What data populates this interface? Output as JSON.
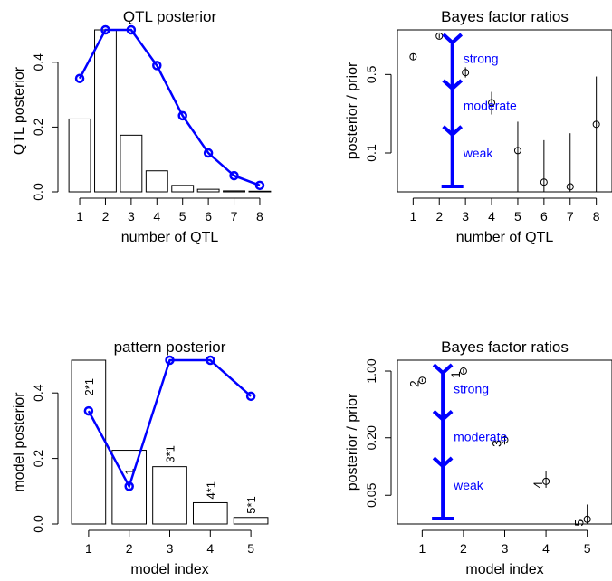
{
  "colors": {
    "ink": "#000000",
    "accent": "#0000ff",
    "bg": "#ffffff"
  },
  "chart_data": [
    {
      "type": "bar",
      "title": "QTL posterior",
      "xlabel": "number of QTL",
      "ylabel": "QTL posterior",
      "categories": [
        "1",
        "2",
        "3",
        "4",
        "5",
        "6",
        "7",
        "8"
      ],
      "ylim": [
        0,
        0.5
      ],
      "yticks": [
        "0.0",
        "0.2",
        "0.4"
      ],
      "bars": [
        0.225,
        0.51,
        0.175,
        0.065,
        0.02,
        0.008,
        0.003,
        0.002
      ],
      "line": {
        "values": [
          0.35,
          0.52,
          0.52,
          0.39,
          0.235,
          0.12,
          0.05,
          0.02
        ]
      }
    },
    {
      "type": "scatter",
      "title": "Bayes factor ratios",
      "xlabel": "number of QTL",
      "ylabel": "posterior / prior",
      "categories": [
        "1",
        "2",
        "3",
        "4",
        "5",
        "6",
        "7",
        "8"
      ],
      "log_y": true,
      "ylim": [
        0.045,
        1.25
      ],
      "yticks": [
        "0.1",
        "0.5"
      ],
      "points": [
        0.72,
        1.1,
        0.52,
        0.28,
        0.105,
        0.055,
        0.05,
        0.18
      ],
      "intervals": [
        [
          0.68,
          0.77
        ],
        [
          1.05,
          1.15
        ],
        [
          0.47,
          0.58
        ],
        [
          0.22,
          0.35
        ],
        [
          0.045,
          0.19
        ],
        [
          0.045,
          0.13
        ],
        [
          0.045,
          0.15
        ],
        [
          0.045,
          0.48
        ]
      ],
      "arrow": {
        "x": 2.5,
        "labels": [
          "strong",
          "moderate",
          "weak"
        ]
      }
    },
    {
      "type": "bar",
      "title": "pattern posterior",
      "xlabel": "model index",
      "ylabel": "model posterior",
      "categories": [
        "1",
        "2",
        "3",
        "4",
        "5"
      ],
      "ylim": [
        0,
        0.5
      ],
      "yticks": [
        "0.0",
        "0.2",
        "0.4"
      ],
      "bars": [
        0.51,
        0.225,
        0.175,
        0.065,
        0.02
      ],
      "bar_labels": [
        "2*1",
        "1",
        "3*1",
        "4*1",
        "5*1"
      ],
      "line": {
        "values": [
          0.345,
          0.115,
          0.52,
          0.52,
          0.39
        ]
      }
    },
    {
      "type": "scatter",
      "title": "Bayes factor ratios",
      "xlabel": "model index",
      "ylabel": "posterior / prior",
      "categories": [
        "1",
        "2",
        "3",
        "4",
        "5"
      ],
      "log_y": true,
      "ylim": [
        0.025,
        1.3
      ],
      "yticks": [
        "0.05",
        "0.20",
        "1.00"
      ],
      "points": [
        0.8,
        1.0,
        0.19,
        0.07,
        0.028
      ],
      "point_x": [
        1,
        2,
        3,
        4,
        5
      ],
      "point_labels": [
        "2",
        "1",
        "3",
        "4",
        "5"
      ],
      "intervals": [
        [
          0.77,
          0.83
        ],
        [
          0.95,
          1.05
        ],
        [
          0.17,
          0.21
        ],
        [
          0.06,
          0.09
        ],
        [
          0.025,
          0.04
        ]
      ],
      "arrow": {
        "x": 1.5,
        "labels": [
          "strong",
          "moderate",
          "weak"
        ]
      }
    }
  ]
}
